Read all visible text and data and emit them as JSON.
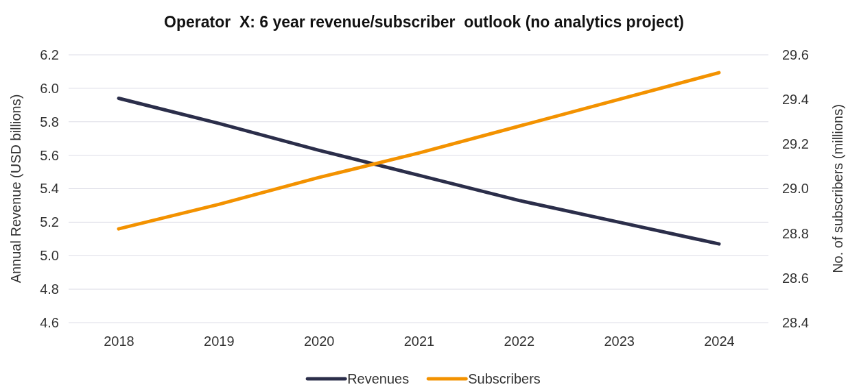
{
  "chart_data": {
    "type": "line",
    "title": "Operator  X: 6 year revenue/subscriber  outlook (no analytics project)",
    "ylabel": "Annual Revenue (USD billions)",
    "y2label": "No. of subscribers (millions)",
    "categories": [
      "2018",
      "2019",
      "2020",
      "2021",
      "2022",
      "2023",
      "2024"
    ],
    "series": [
      {
        "name": "Revenues",
        "color": "#2b2e4a",
        "values": [
          5.94,
          5.79,
          5.63,
          5.48,
          5.33,
          5.2,
          5.07
        ]
      },
      {
        "name": "Subscribers",
        "color": "#f39200",
        "axis": "y2",
        "values": [
          28.82,
          28.93,
          29.05,
          29.16,
          29.28,
          29.4,
          29.52
        ]
      }
    ],
    "ylim": [
      4.6,
      6.2
    ],
    "yticks": [
      {
        "value": 4.6,
        "label": "4.6"
      },
      {
        "value": 4.8,
        "label": "4.8"
      },
      {
        "value": 5,
        "label": "5.0"
      },
      {
        "value": 5.2,
        "label": "5.2"
      },
      {
        "value": 5.4,
        "label": "5.4"
      },
      {
        "value": 5.6,
        "label": "5.6"
      },
      {
        "value": 5.8,
        "label": "5.8"
      },
      {
        "value": 6,
        "label": "6.0"
      },
      {
        "value": 6.2,
        "label": "6.2"
      }
    ],
    "y2lim": [
      28.4,
      29.6
    ],
    "y2ticks": [
      {
        "value": 28.4,
        "label": "28.4"
      },
      {
        "value": 28.6,
        "label": "28.6"
      },
      {
        "value": 28.8,
        "label": "28.8"
      },
      {
        "value": 29,
        "label": "29.0"
      },
      {
        "value": 29.2,
        "label": "29.2"
      },
      {
        "value": 29.4,
        "label": "29.4"
      },
      {
        "value": 29.6,
        "label": "29.6"
      }
    ],
    "grid": "y",
    "legend": "bottom",
    "marker": "none",
    "line_style": "solid"
  }
}
